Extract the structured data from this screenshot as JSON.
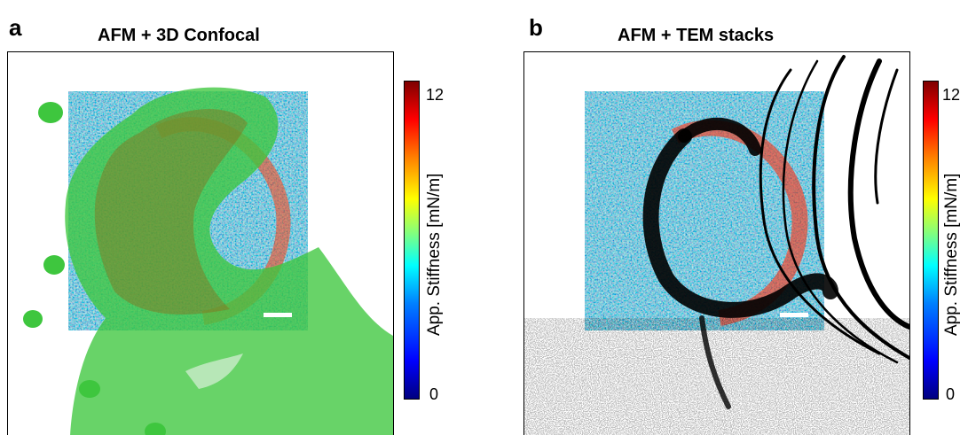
{
  "panels": [
    {
      "letter": "a",
      "title": "AFM + 3D Confocal",
      "colorbar": {
        "label": "App. Stiffness [mN/m]",
        "min": "0",
        "max": "12"
      }
    },
    {
      "letter": "b",
      "title": "AFM + TEM stacks",
      "colorbar": {
        "label": "App. Stiffness [mN/m]",
        "min": "0",
        "max": "12"
      }
    }
  ],
  "colors": {
    "confocal_green": "#3ec63e",
    "tem_black": "#000000",
    "stiff_low": "#0000ff",
    "stiff_high": "#ff0000"
  }
}
